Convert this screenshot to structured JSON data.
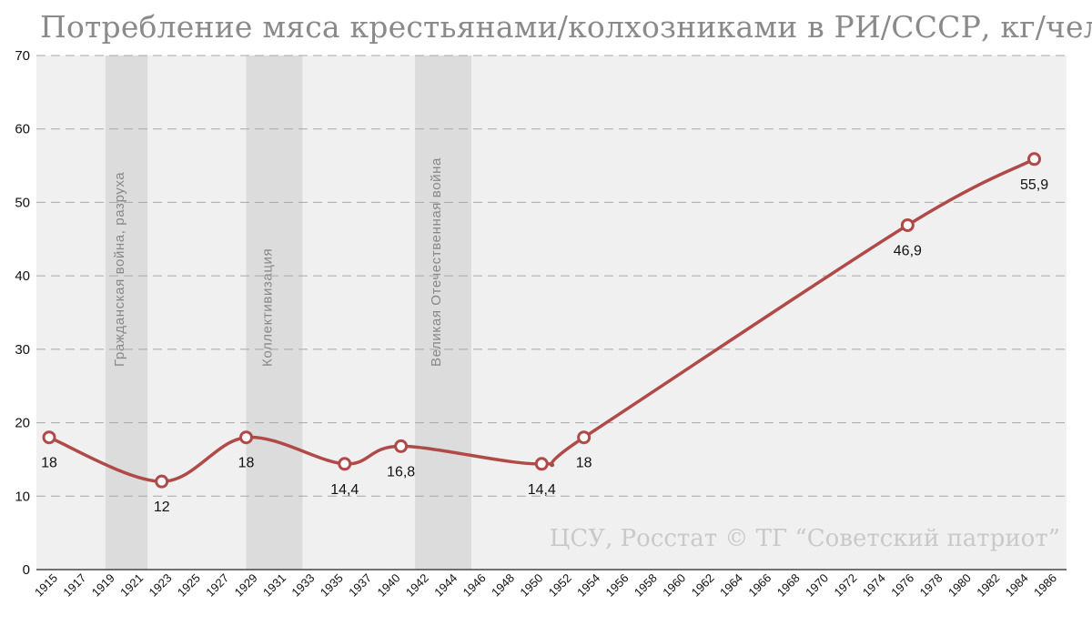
{
  "chart_data": {
    "type": "line",
    "title": "Потребление мяса крестьянами/колхозниками в РИ/СССР, кг/чел",
    "xlabel": "",
    "ylabel": "",
    "ylim": [
      0,
      70
    ],
    "yticks": [
      0,
      10,
      20,
      30,
      40,
      50,
      60,
      70
    ],
    "xlim": [
      1915,
      1986
    ],
    "xticks": [
      "1915",
      "1917",
      "1919",
      "1921",
      "1923",
      "1925",
      "1927",
      "1929",
      "1931",
      "1933",
      "1935",
      "1937",
      "1940",
      "1942",
      "1944",
      "1946",
      "1948",
      "1950",
      "1952",
      "1954",
      "1956",
      "1958",
      "1960",
      "1962",
      "1964",
      "1966",
      "1968",
      "1970",
      "1972",
      "1974",
      "1976",
      "1978",
      "1980",
      "1982",
      "1984",
      "1986"
    ],
    "grid": "horizontal dashed",
    "series": [
      {
        "color": "#b04a48",
        "points": [
          {
            "x": 1915,
            "y": 18,
            "label": "18"
          },
          {
            "x": 1923,
            "y": 12,
            "label": "12"
          },
          {
            "x": 1929,
            "y": 18,
            "label": "18"
          },
          {
            "x": 1936,
            "y": 14.4,
            "label": "14,4"
          },
          {
            "x": 1940,
            "y": 16.8,
            "label": "16,8"
          },
          {
            "x": 1950,
            "y": 14.4,
            "label": "14,4"
          },
          {
            "x": 1953,
            "y": 18,
            "label": "18"
          },
          {
            "x": 1976,
            "y": 46.9,
            "label": "46,9"
          },
          {
            "x": 1985,
            "y": 55.9,
            "label": "55,9"
          }
        ]
      }
    ],
    "periods": [
      {
        "label": "Гражданская война, разруха",
        "start": 1919,
        "end": 1922
      },
      {
        "label": "Коллективизация",
        "start": 1929,
        "end": 1933
      },
      {
        "label": "Великая Отечественная война",
        "start": 1941,
        "end": 1945
      }
    ],
    "source": "ЦСУ, Росстат © ТГ “Советский патриот”"
  }
}
